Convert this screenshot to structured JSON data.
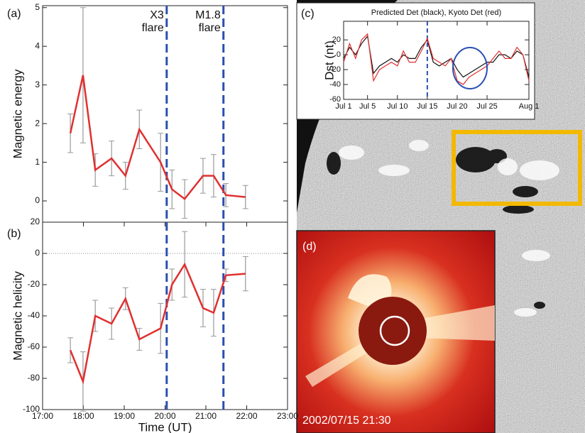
{
  "chart_data": [
    {
      "type": "line",
      "label": "(a)",
      "ylabel": "Magnetic energy",
      "x": [
        17.68,
        17.99,
        18.29,
        18.69,
        19.03,
        19.37,
        19.89,
        20.17,
        20.48,
        20.93,
        21.19,
        21.49,
        21.97
      ],
      "series": [
        {
          "color": "#e03030",
          "values": [
            1.75,
            3.25,
            0.8,
            1.1,
            0.65,
            1.85,
            1.0,
            0.3,
            0.05,
            0.65,
            0.65,
            0.15,
            0.1
          ],
          "errors": [
            0.5,
            1.75,
            0.42,
            0.45,
            0.35,
            0.5,
            0.75,
            0.5,
            0.5,
            0.45,
            0.55,
            0.3,
            0.3
          ]
        }
      ],
      "xlim": [
        17,
        23
      ],
      "ylim": [
        -0.55,
        5.05
      ],
      "yticks": [
        0,
        1,
        2,
        3,
        4,
        5
      ],
      "annotations": [
        {
          "x": 20.04,
          "text": [
            "X3",
            "flare"
          ]
        },
        {
          "x": 21.43,
          "text": [
            "M1.8",
            "flare"
          ]
        }
      ]
    },
    {
      "type": "line",
      "label": "(b)",
      "ylabel": "Magnetic helicity",
      "xlabel": "Time (UT)",
      "x": [
        17.68,
        17.99,
        18.29,
        18.69,
        19.03,
        19.37,
        19.89,
        20.17,
        20.48,
        20.93,
        21.19,
        21.49,
        21.97
      ],
      "series": [
        {
          "color": "#e03030",
          "values": [
            -62,
            -82,
            -40,
            -45,
            -29,
            -55,
            -48,
            -20,
            -7,
            -35,
            -38,
            -14,
            -13
          ],
          "errors": [
            8,
            19,
            10,
            10,
            7,
            7,
            16,
            10,
            21,
            12,
            15,
            4,
            11
          ]
        }
      ],
      "xlim": [
        17,
        23
      ],
      "ylim": [
        -100,
        20
      ],
      "yticks": [
        -100,
        -80,
        -60,
        -40,
        -20,
        0,
        20
      ],
      "xticks": [
        {
          "value": 17,
          "label": "17:00"
        },
        {
          "value": 18,
          "label": "18:00"
        },
        {
          "value": 19,
          "label": "19:00"
        },
        {
          "value": 20,
          "label": "20:00"
        },
        {
          "value": 21,
          "label": "21:00"
        },
        {
          "value": 22,
          "label": "22:00"
        },
        {
          "value": 23,
          "label": "23:00"
        }
      ],
      "zero_line": 0
    },
    {
      "type": "line",
      "label": "(c)",
      "title": "Predicted Det (black), Kyoto Det (red)",
      "ylabel": "Dst (nt)",
      "x": [
        1,
        2,
        3,
        4,
        5,
        6,
        7,
        8,
        9,
        10,
        11,
        12,
        13,
        14,
        15,
        16,
        17,
        18,
        19,
        20,
        21,
        22,
        23,
        24,
        25,
        26,
        27,
        28,
        29,
        30,
        31,
        32
      ],
      "series": [
        {
          "color": "#111111",
          "values": [
            -5,
            10,
            0,
            15,
            25,
            -25,
            -15,
            -10,
            -5,
            -10,
            0,
            -5,
            -5,
            10,
            20,
            -10,
            -15,
            -10,
            -5,
            -20,
            -30,
            -25,
            -20,
            -15,
            -10,
            -10,
            0,
            0,
            -5,
            5,
            0,
            -30
          ]
        },
        {
          "color": "#e03030",
          "values": [
            -10,
            15,
            -5,
            20,
            28,
            -35,
            -20,
            -15,
            -10,
            -15,
            5,
            -10,
            -10,
            5,
            22,
            -5,
            -10,
            -15,
            -5,
            -35,
            -40,
            -30,
            -25,
            -20,
            -15,
            -5,
            5,
            -5,
            -5,
            10,
            0,
            -35
          ]
        }
      ],
      "xlim": [
        1,
        32
      ],
      "ylim": [
        -60,
        45
      ],
      "yticks": [
        -60,
        -40,
        -20,
        0,
        20
      ],
      "xticks": [
        {
          "value": 1,
          "label": "Jul 1"
        },
        {
          "value": 5,
          "label": "Jul 5"
        },
        {
          "value": 10,
          "label": "Jul 10"
        },
        {
          "value": 15,
          "label": "Jul 15"
        },
        {
          "value": 20,
          "label": "Jul 20"
        },
        {
          "value": 25,
          "label": "Jul 25"
        },
        {
          "value": 32,
          "label": "Aug 1"
        }
      ],
      "markers": [
        15
      ]
    }
  ],
  "image": {
    "label": "(d)",
    "caption": "2002/07/15 21:30"
  }
}
